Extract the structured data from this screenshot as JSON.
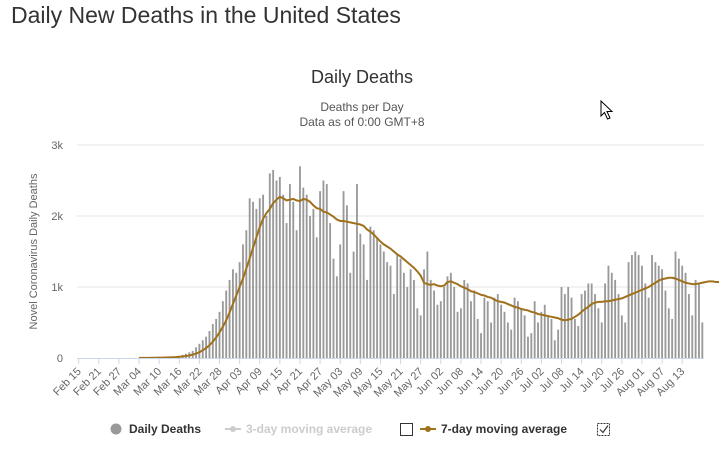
{
  "page": {
    "heading": "Daily New Deaths in the United States"
  },
  "chart_data": {
    "type": "bar",
    "title": "Daily Deaths",
    "subtitle_lines": [
      "Deaths per Day",
      "Data as of 0:00 GMT+8"
    ],
    "ylabel": "Novel Coronavirus Daily Deaths",
    "xlabel": "",
    "ylim": [
      0,
      3000
    ],
    "y_ticks": [
      {
        "value": 0,
        "label": "0"
      },
      {
        "value": 1000,
        "label": "1k"
      },
      {
        "value": 2000,
        "label": "2k"
      },
      {
        "value": 3000,
        "label": "3k"
      }
    ],
    "x_ticks": [
      {
        "label": "Feb 15",
        "index": 0
      },
      {
        "label": "Feb 21",
        "index": 6
      },
      {
        "label": "Feb 27",
        "index": 12
      },
      {
        "label": "Mar 04",
        "index": 18
      },
      {
        "label": "Mar 10",
        "index": 24
      },
      {
        "label": "Mar 16",
        "index": 30
      },
      {
        "label": "Mar 22",
        "index": 36
      },
      {
        "label": "Mar 28",
        "index": 42
      },
      {
        "label": "Apr 03",
        "index": 48
      },
      {
        "label": "Apr 09",
        "index": 54
      },
      {
        "label": "Apr 15",
        "index": 60
      },
      {
        "label": "Apr 21",
        "index": 66
      },
      {
        "label": "Apr 27",
        "index": 72
      },
      {
        "label": "May 03",
        "index": 78
      },
      {
        "label": "May 09",
        "index": 84
      },
      {
        "label": "May 15",
        "index": 90
      },
      {
        "label": "May 21",
        "index": 96
      },
      {
        "label": "May 27",
        "index": 102
      },
      {
        "label": "Jun 02",
        "index": 108
      },
      {
        "label": "Jun 08",
        "index": 114
      },
      {
        "label": "Jun 14",
        "index": 120
      },
      {
        "label": "Jun 20",
        "index": 126
      },
      {
        "label": "Jun 26",
        "index": 132
      },
      {
        "label": "Jul 02",
        "index": 138
      },
      {
        "label": "Jul 08",
        "index": 144
      },
      {
        "label": "Jul 14",
        "index": 150
      },
      {
        "label": "Jul 20",
        "index": 156
      },
      {
        "label": "Jul 26",
        "index": 162
      },
      {
        "label": "Aug 01",
        "index": 168
      },
      {
        "label": "Aug 07",
        "index": 174
      },
      {
        "label": "Aug 13",
        "index": 180
      }
    ],
    "start_date": "Feb 15",
    "series": [
      {
        "name": "Daily Deaths",
        "type": "bar",
        "color": "#999999",
        "values": [
          0,
          0,
          0,
          0,
          0,
          0,
          0,
          0,
          0,
          0,
          0,
          0,
          0,
          0,
          0,
          1,
          0,
          1,
          2,
          2,
          3,
          5,
          5,
          7,
          9,
          10,
          12,
          15,
          18,
          22,
          30,
          45,
          60,
          80,
          100,
          150,
          200,
          250,
          300,
          380,
          480,
          550,
          650,
          800,
          950,
          1100,
          1250,
          1200,
          1350,
          1600,
          1800,
          2250,
          2200,
          2100,
          2250,
          2300,
          2000,
          2600,
          2650,
          2500,
          2550,
          2300,
          1900,
          2450,
          2200,
          1800,
          2700,
          2400,
          2300,
          2000,
          2100,
          1700,
          2350,
          2500,
          2450,
          1900,
          1400,
          1150,
          1600,
          2350,
          2150,
          1200,
          1500,
          2450,
          1750,
          1600,
          1100,
          1850,
          1800,
          1700,
          1600,
          1500,
          1350,
          1300,
          900,
          1450,
          1400,
          1200,
          1000,
          1250,
          1100,
          700,
          600,
          1250,
          1500,
          1100,
          950,
          750,
          800,
          1000,
          1150,
          1200,
          1000,
          650,
          700,
          1100,
          1050,
          800,
          950,
          550,
          350,
          850,
          800,
          500,
          850,
          900,
          750,
          650,
          500,
          400,
          850,
          800,
          700,
          600,
          300,
          350,
          800,
          500,
          650,
          750,
          600,
          550,
          250,
          400,
          1000,
          900,
          1000,
          850,
          550,
          450,
          900,
          950,
          1050,
          1050,
          900,
          700,
          500,
          1050,
          1300,
          1200,
          1100,
          900,
          600,
          500,
          1350,
          1450,
          1500,
          1450,
          1300,
          1050,
          850,
          1450,
          1350,
          1300,
          1250,
          950,
          700,
          550,
          1500,
          1400,
          1300,
          1200,
          900,
          600,
          1100,
          1050,
          500
        ],
        "note": ""
      },
      {
        "name": "3-day moving average",
        "type": "line",
        "color": "#cccccc",
        "hidden": true
      },
      {
        "name": "7-day moving average",
        "type": "line",
        "color": "#a0711c",
        "values": [
          0,
          0,
          0,
          0,
          0,
          0,
          0,
          0,
          0,
          0,
          0,
          0,
          0,
          0,
          0,
          0,
          0,
          0,
          1,
          1,
          1,
          2,
          3,
          4,
          5,
          6,
          7,
          9,
          11,
          13,
          17,
          22,
          28,
          36,
          47,
          62,
          82,
          108,
          140,
          180,
          230,
          290,
          360,
          440,
          530,
          640,
          760,
          880,
          1000,
          1120,
          1260,
          1400,
          1550,
          1700,
          1840,
          1960,
          2040,
          2100,
          2180,
          2230,
          2270,
          2250,
          2220,
          2230,
          2240,
          2220,
          2210,
          2240,
          2230,
          2200,
          2150,
          2110,
          2100,
          2060,
          2050,
          2020,
          1990,
          1950,
          1930,
          1930,
          1920,
          1910,
          1900,
          1890,
          1880,
          1860,
          1810,
          1780,
          1740,
          1690,
          1640,
          1600,
          1570,
          1540,
          1500,
          1460,
          1430,
          1390,
          1350,
          1310,
          1270,
          1220,
          1160,
          1060,
          1040,
          1030,
          1040,
          1020,
          1010,
          1020,
          1070,
          1080,
          1060,
          1040,
          1010,
          990,
          970,
          940,
          930,
          910,
          890,
          880,
          860,
          850,
          820,
          800,
          790,
          780,
          760,
          740,
          720,
          710,
          690,
          680,
          670,
          650,
          640,
          620,
          610,
          600,
          590,
          580,
          570,
          560,
          540,
          530,
          540,
          550,
          580,
          610,
          650,
          690,
          720,
          760,
          780,
          790,
          790,
          800,
          800,
          810,
          820,
          830,
          840,
          860,
          880,
          900,
          920,
          940,
          960,
          980,
          1000,
          1030,
          1060,
          1090,
          1110,
          1120,
          1130,
          1130,
          1120,
          1100,
          1080,
          1060,
          1050,
          1040,
          1040,
          1050,
          1060,
          1070,
          1080,
          1080,
          1070,
          1070,
          1060
        ]
      }
    ],
    "legend": {
      "placement": "bottom",
      "items": [
        {
          "label": "Daily Deaths",
          "color": "#999999",
          "enabled": true,
          "marker": "circle"
        },
        {
          "label": "3-day moving average",
          "color": "#cccccc",
          "enabled": false,
          "marker": "line-dot",
          "checkbox": false
        },
        {
          "label": "7-day moving average",
          "color": "#a0711c",
          "enabled": true,
          "marker": "line-dot",
          "checkbox": true
        }
      ]
    },
    "grid": true
  }
}
